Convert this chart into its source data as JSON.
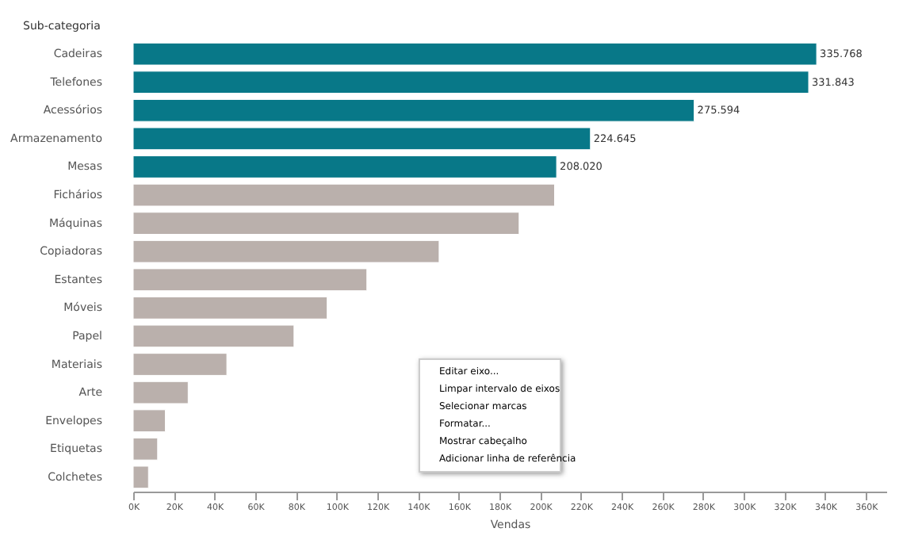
{
  "chart_data": {
    "type": "bar",
    "orientation": "horizontal",
    "ylabel": "Sub-categoria",
    "xlabel": "Vendas",
    "categories": [
      "Cadeiras",
      "Telefones",
      "Acessórios",
      "Armazenamento",
      "Mesas",
      "Fichários",
      "Máquinas",
      "Copiadoras",
      "Estantes",
      "Móveis",
      "Papel",
      "Materiais",
      "Arte",
      "Envelopes",
      "Etiquetas",
      "Colchetes"
    ],
    "values": [
      335768,
      331843,
      275594,
      224645,
      208020,
      207000,
      189600,
      150300,
      114800,
      95300,
      79000,
      46000,
      27000,
      15800,
      12000,
      7500
    ],
    "value_labels": [
      "335.768",
      "331.843",
      "275.594",
      "224.645",
      "208.020",
      null,
      null,
      null,
      null,
      null,
      null,
      null,
      null,
      null,
      null,
      null
    ],
    "colors": [
      "#087888",
      "#087888",
      "#087888",
      "#087888",
      "#087888",
      "#bab0ac",
      "#bab0ac",
      "#bab0ac",
      "#bab0ac",
      "#bab0ac",
      "#bab0ac",
      "#bab0ac",
      "#bab0ac",
      "#bab0ac",
      "#bab0ac",
      "#bab0ac"
    ],
    "xlim": [
      0,
      370000
    ],
    "xticks": [
      {
        "value": 0,
        "label": "0K"
      },
      {
        "value": 20000,
        "label": "20K"
      },
      {
        "value": 40000,
        "label": "40K"
      },
      {
        "value": 60000,
        "label": "60K"
      },
      {
        "value": 80000,
        "label": "80K"
      },
      {
        "value": 100000,
        "label": "100K"
      },
      {
        "value": 120000,
        "label": "120K"
      },
      {
        "value": 140000,
        "label": "140K"
      },
      {
        "value": 160000,
        "label": "160K"
      },
      {
        "value": 180000,
        "label": "180K"
      },
      {
        "value": 200000,
        "label": "200K"
      },
      {
        "value": 220000,
        "label": "220K"
      },
      {
        "value": 240000,
        "label": "240K"
      },
      {
        "value": 260000,
        "label": "260K"
      },
      {
        "value": 280000,
        "label": "280K"
      },
      {
        "value": 300000,
        "label": "300K"
      },
      {
        "value": 320000,
        "label": "320K"
      },
      {
        "value": 340000,
        "label": "340K"
      },
      {
        "value": 360000,
        "label": "360K"
      }
    ],
    "grid": false,
    "annotations": [
      "Editar eixo...",
      "Limpar intervalo de eixos",
      "Selecionar marcas",
      "Formatar...",
      "Mostrar cabeçalho",
      "Adicionar linha de referência"
    ]
  }
}
